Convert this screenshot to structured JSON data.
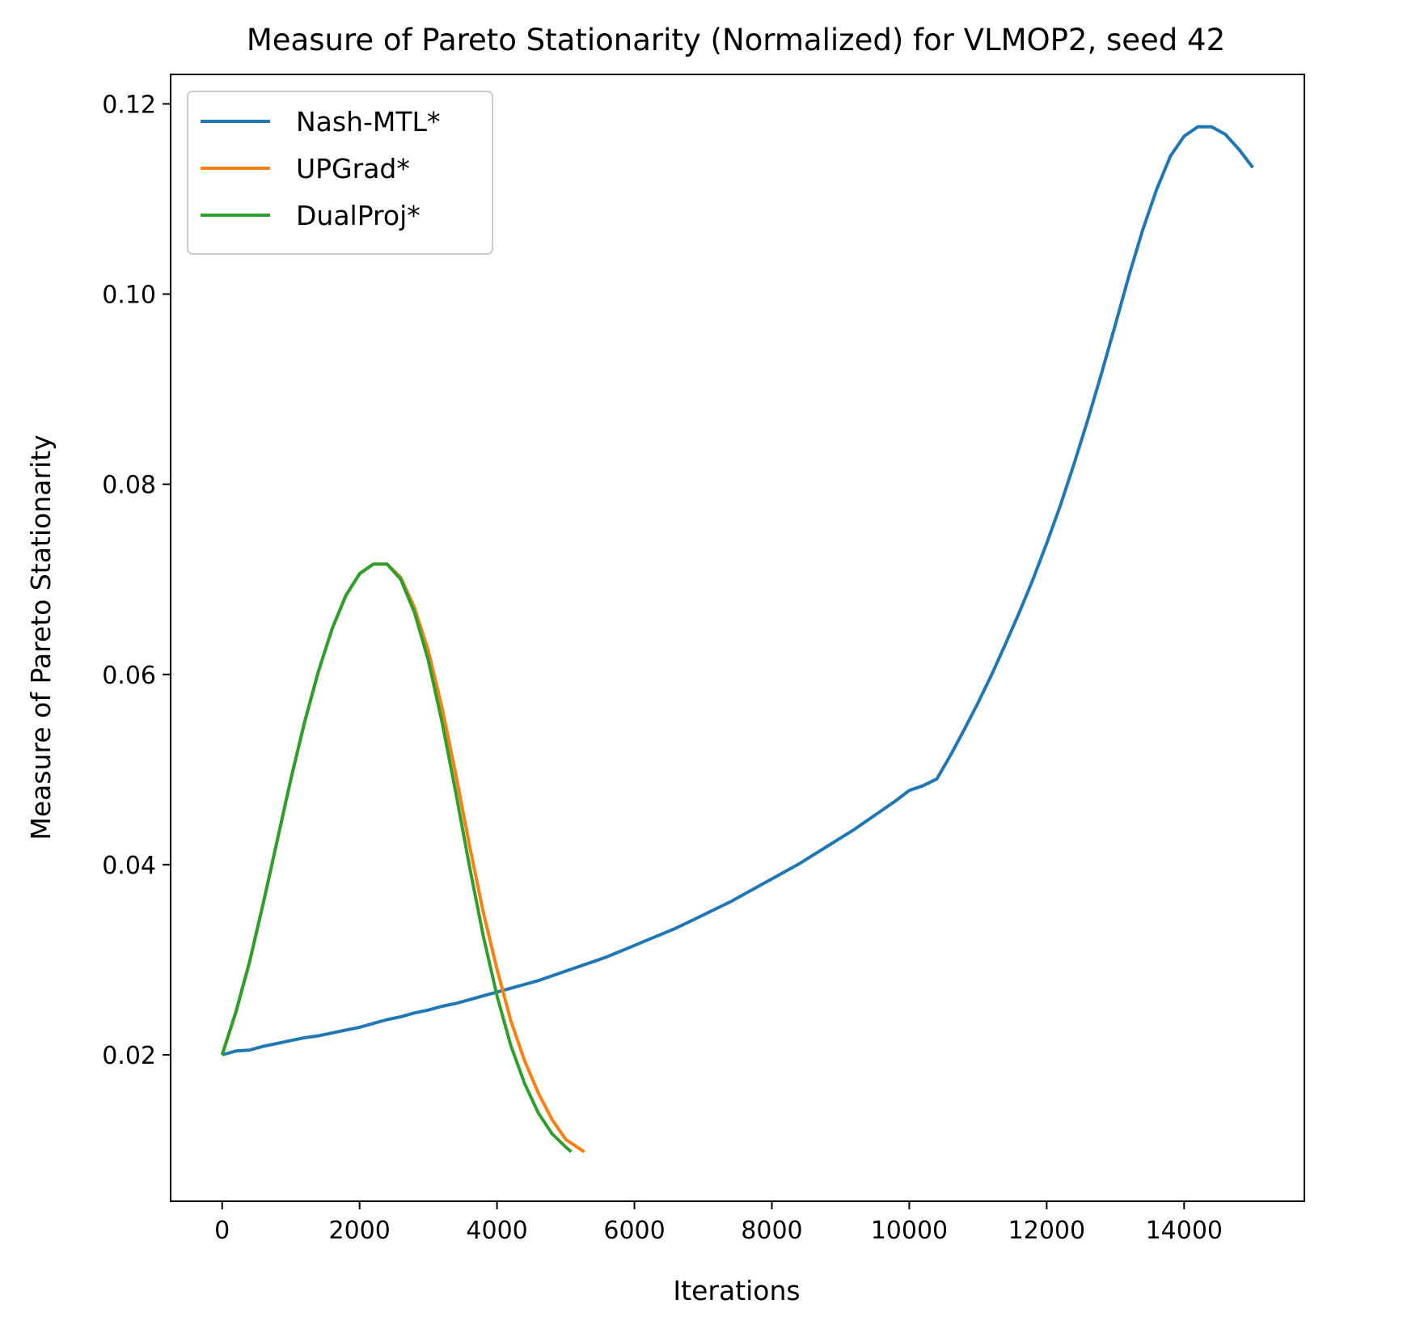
{
  "chart_data": {
    "type": "line",
    "title": "Measure of Pareto Stationarity (Normalized) for VLMOP2, seed 42",
    "xlabel": "Iterations",
    "ylabel": "Measure of Pareto Stationarity",
    "xlim": [
      -750,
      15750
    ],
    "ylim": [
      0.0046,
      0.1231
    ],
    "xticks": [
      0,
      2000,
      4000,
      6000,
      8000,
      10000,
      12000,
      14000
    ],
    "xtick_labels": [
      "0",
      "2000",
      "4000",
      "6000",
      "8000",
      "10000",
      "12000",
      "14000"
    ],
    "yticks": [
      0.02,
      0.04,
      0.06,
      0.08,
      0.1,
      0.12
    ],
    "ytick_labels": [
      "0.02",
      "0.04",
      "0.06",
      "0.08",
      "0.10",
      "0.12"
    ],
    "grid": false,
    "legend_position": "top-left",
    "series": [
      {
        "name": "Nash-MTL*",
        "color": "#1f77b4",
        "x": [
          0,
          200,
          400,
          600,
          800,
          1000,
          1200,
          1400,
          1600,
          1800,
          2000,
          2200,
          2400,
          2600,
          2800,
          3000,
          3200,
          3400,
          3600,
          3800,
          4000,
          4200,
          4400,
          4600,
          4800,
          5000,
          5200,
          5400,
          5600,
          5800,
          6000,
          6200,
          6400,
          6600,
          6800,
          7000,
          7200,
          7400,
          7600,
          7800,
          8000,
          8200,
          8400,
          8600,
          8800,
          9000,
          9200,
          9400,
          9600,
          9800,
          10000,
          10200,
          10400,
          10600,
          10800,
          11000,
          11200,
          11400,
          11600,
          11800,
          12000,
          12200,
          12400,
          12600,
          12800,
          13000,
          13200,
          13400,
          13600,
          13800,
          14000,
          14200,
          14400,
          14600,
          14800,
          15000
        ],
        "y": [
          0.02,
          0.0204,
          0.0205,
          0.0209,
          0.0212,
          0.0215,
          0.0218,
          0.022,
          0.0223,
          0.0226,
          0.0229,
          0.0233,
          0.0237,
          0.024,
          0.0244,
          0.0247,
          0.0251,
          0.0254,
          0.0258,
          0.0262,
          0.0266,
          0.027,
          0.0274,
          0.0278,
          0.0283,
          0.0288,
          0.0293,
          0.0298,
          0.0303,
          0.0309,
          0.0315,
          0.0321,
          0.0327,
          0.0333,
          0.034,
          0.0347,
          0.0354,
          0.0361,
          0.0369,
          0.0377,
          0.0385,
          0.0393,
          0.0401,
          0.041,
          0.0419,
          0.0428,
          0.0437,
          0.0447,
          0.0457,
          0.0467,
          0.0478,
          0.0483,
          0.049,
          0.0515,
          0.0542,
          0.057,
          0.06,
          0.0632,
          0.0665,
          0.07,
          0.0738,
          0.0778,
          0.0822,
          0.0868,
          0.0917,
          0.0968,
          0.102,
          0.1068,
          0.111,
          0.1145,
          0.1166,
          0.1176,
          0.1176,
          0.1168,
          0.1152,
          0.1133
        ]
      },
      {
        "name": "UPGrad*",
        "color": "#ff7f0e",
        "x": [
          0,
          200,
          400,
          600,
          800,
          1000,
          1200,
          1400,
          1600,
          1800,
          2000,
          2200,
          2400,
          2600,
          2800,
          3000,
          3200,
          3400,
          3600,
          3800,
          4000,
          4200,
          4400,
          4600,
          4800,
          5000,
          5270
        ],
        "y": [
          0.02,
          0.0245,
          0.0298,
          0.036,
          0.0425,
          0.049,
          0.055,
          0.0603,
          0.0648,
          0.0683,
          0.0706,
          0.0716,
          0.0716,
          0.0702,
          0.067,
          0.0625,
          0.0565,
          0.0495,
          0.042,
          0.035,
          0.029,
          0.0236,
          0.0194,
          0.016,
          0.0132,
          0.0111,
          0.0098
        ]
      },
      {
        "name": "DualProj*",
        "color": "#2ca02c",
        "x": [
          0,
          200,
          400,
          600,
          800,
          1000,
          1200,
          1400,
          1600,
          1800,
          2000,
          2200,
          2400,
          2600,
          2800,
          3000,
          3200,
          3400,
          3600,
          3800,
          4000,
          4200,
          4400,
          4600,
          4800,
          5000,
          5080
        ],
        "y": [
          0.02,
          0.0245,
          0.0298,
          0.036,
          0.0425,
          0.049,
          0.055,
          0.0603,
          0.0648,
          0.0683,
          0.0706,
          0.0716,
          0.0716,
          0.07,
          0.0665,
          0.0615,
          0.055,
          0.0476,
          0.0398,
          0.0325,
          0.0262,
          0.021,
          0.017,
          0.0139,
          0.0117,
          0.0103,
          0.0098
        ]
      }
    ]
  }
}
